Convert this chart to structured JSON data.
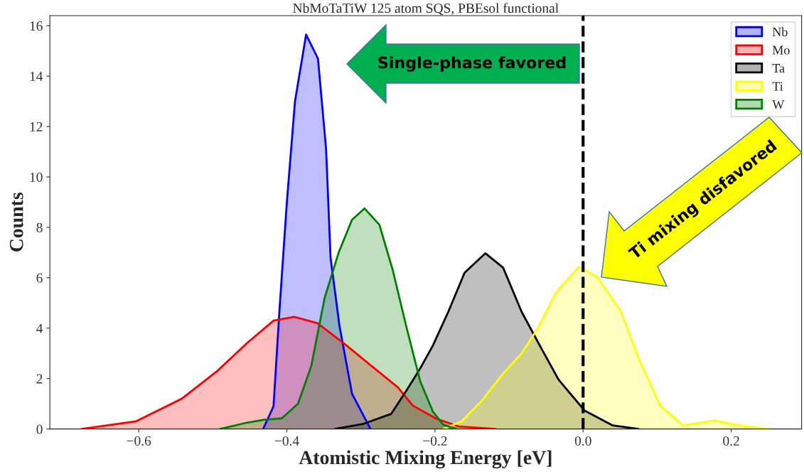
{
  "chart_data": {
    "type": "area",
    "title": "NbMoTaTiW 125 atom SQS, PBEsol functional",
    "xlabel": "Atomistic Mixing Energy [eV]",
    "ylabel": "Counts",
    "xlim": [
      -0.72,
      0.295
    ],
    "xticks": [
      {
        "value": -0.6,
        "label": "−0.6"
      },
      {
        "value": -0.4,
        "label": "−0.4"
      },
      {
        "value": -0.2,
        "label": "−0.2"
      },
      {
        "value": 0,
        "label": "0.0"
      },
      0.2
    ],
    "ylim": [
      0,
      16.4
    ],
    "yticks": [
      0,
      2,
      4,
      6,
      8,
      10,
      12,
      14,
      16
    ],
    "grid": false,
    "legend": "top right",
    "series": [
      {
        "name": "Nb",
        "color": "#0000ff",
        "x": [
          -0.432,
          -0.418,
          -0.41,
          -0.4,
          -0.389,
          -0.374,
          -0.358,
          -0.347,
          -0.341,
          -0.329,
          -0.312,
          -0.297,
          -0.287
        ],
        "values": [
          0,
          0.9,
          4.7,
          9.0,
          13.0,
          15.65,
          14.7,
          11.1,
          6.8,
          4.1,
          1.4,
          0.56,
          0
        ]
      },
      {
        "name": "Mo",
        "color": "#ff0000",
        "x": [
          -0.677,
          -0.604,
          -0.542,
          -0.494,
          -0.454,
          -0.418,
          -0.39,
          -0.359,
          -0.323,
          -0.294,
          -0.25,
          -0.23,
          -0.199,
          -0.168,
          -0.118
        ],
        "values": [
          0,
          0.3,
          1.2,
          2.3,
          3.4,
          4.3,
          4.45,
          4.2,
          3.4,
          2.7,
          1.65,
          0.93,
          0.42,
          0.1,
          0
        ]
      },
      {
        "name": "Ta",
        "color": "#000000",
        "x": [
          -0.335,
          -0.297,
          -0.259,
          -0.238,
          -0.22,
          -0.203,
          -0.182,
          -0.16,
          -0.132,
          -0.108,
          -0.083,
          -0.062,
          -0.033,
          0.002,
          0.04,
          0.075
        ],
        "values": [
          0,
          0.2,
          0.6,
          1.55,
          2.4,
          3.3,
          4.65,
          6.2,
          6.97,
          6.4,
          4.65,
          3.5,
          1.95,
          0.73,
          0.14,
          0
        ]
      },
      {
        "name": "Ti",
        "color": "#ffff00",
        "x": [
          -0.189,
          -0.164,
          -0.136,
          -0.108,
          -0.083,
          -0.062,
          -0.037,
          -0.006,
          0.019,
          0.051,
          0.075,
          0.104,
          0.135,
          0.178,
          0.21,
          0.251
        ],
        "values": [
          0,
          0.3,
          1.15,
          2.2,
          3.0,
          3.95,
          5.4,
          6.43,
          6.04,
          4.66,
          2.8,
          0.93,
          0.14,
          0.34,
          0.14,
          0
        ]
      },
      {
        "name": "W",
        "color": "#008000",
        "x": [
          -0.49,
          -0.454,
          -0.432,
          -0.407,
          -0.385,
          -0.367,
          -0.349,
          -0.33,
          -0.312,
          -0.295,
          -0.275,
          -0.257,
          -0.239,
          -0.22,
          -0.203,
          -0.189,
          -0.171
        ],
        "values": [
          0,
          0.25,
          0.36,
          0.42,
          1.0,
          2.5,
          5.2,
          7.0,
          8.3,
          8.75,
          8.1,
          6.3,
          4.1,
          1.9,
          0.7,
          0.17,
          0
        ]
      }
    ],
    "ref_lines": [
      {
        "axis": "x",
        "value": 0,
        "color": "#000000",
        "line_style": "dashed"
      }
    ],
    "annotations": [
      "Single-phase favored",
      "Ti mixing disfavored"
    ]
  }
}
